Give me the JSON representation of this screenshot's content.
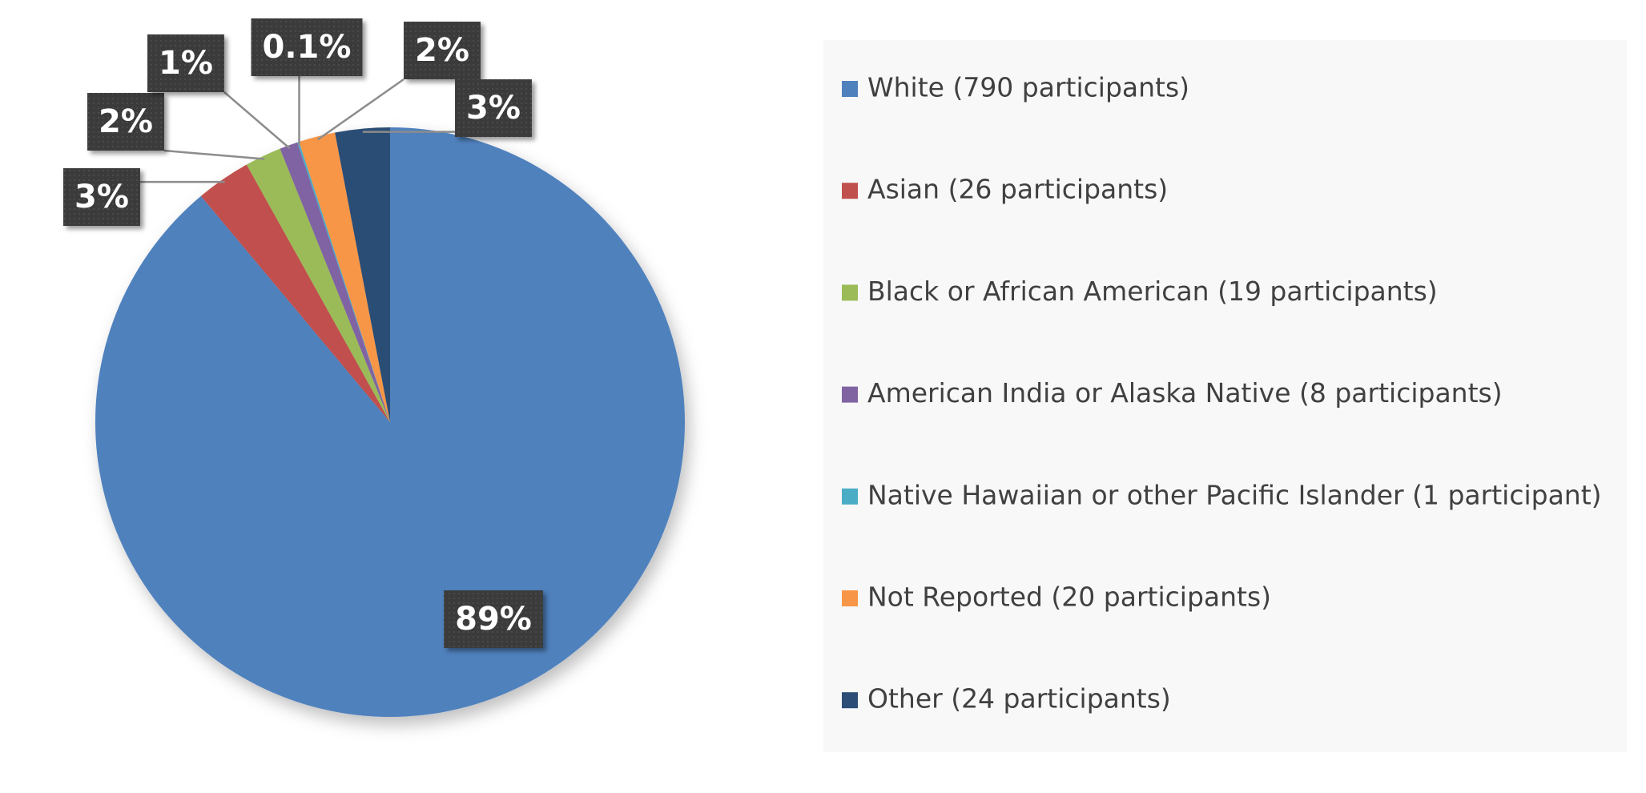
{
  "chart_data": {
    "type": "pie",
    "categories": [
      "White (790 participants)",
      "Asian (26 participants)",
      "Black or African American (19 participants)",
      "American India or Alaska Native (8 participants)",
      "Native Hawaiian or other Pacific Islander (1 participant)",
      "Not Reported (20 participants)",
      "Other (24 participants)"
    ],
    "values": [
      89,
      3,
      2,
      1,
      0.1,
      2,
      3
    ],
    "value_labels": [
      "89%",
      "3%",
      "2%",
      "1%",
      "0.1%",
      "2%",
      "3%"
    ],
    "colors": [
      "#4f81bd",
      "#c0504d",
      "#9bbb59",
      "#8064a2",
      "#4bacc6",
      "#f79646",
      "#2c4d75"
    ],
    "legend": "right"
  }
}
